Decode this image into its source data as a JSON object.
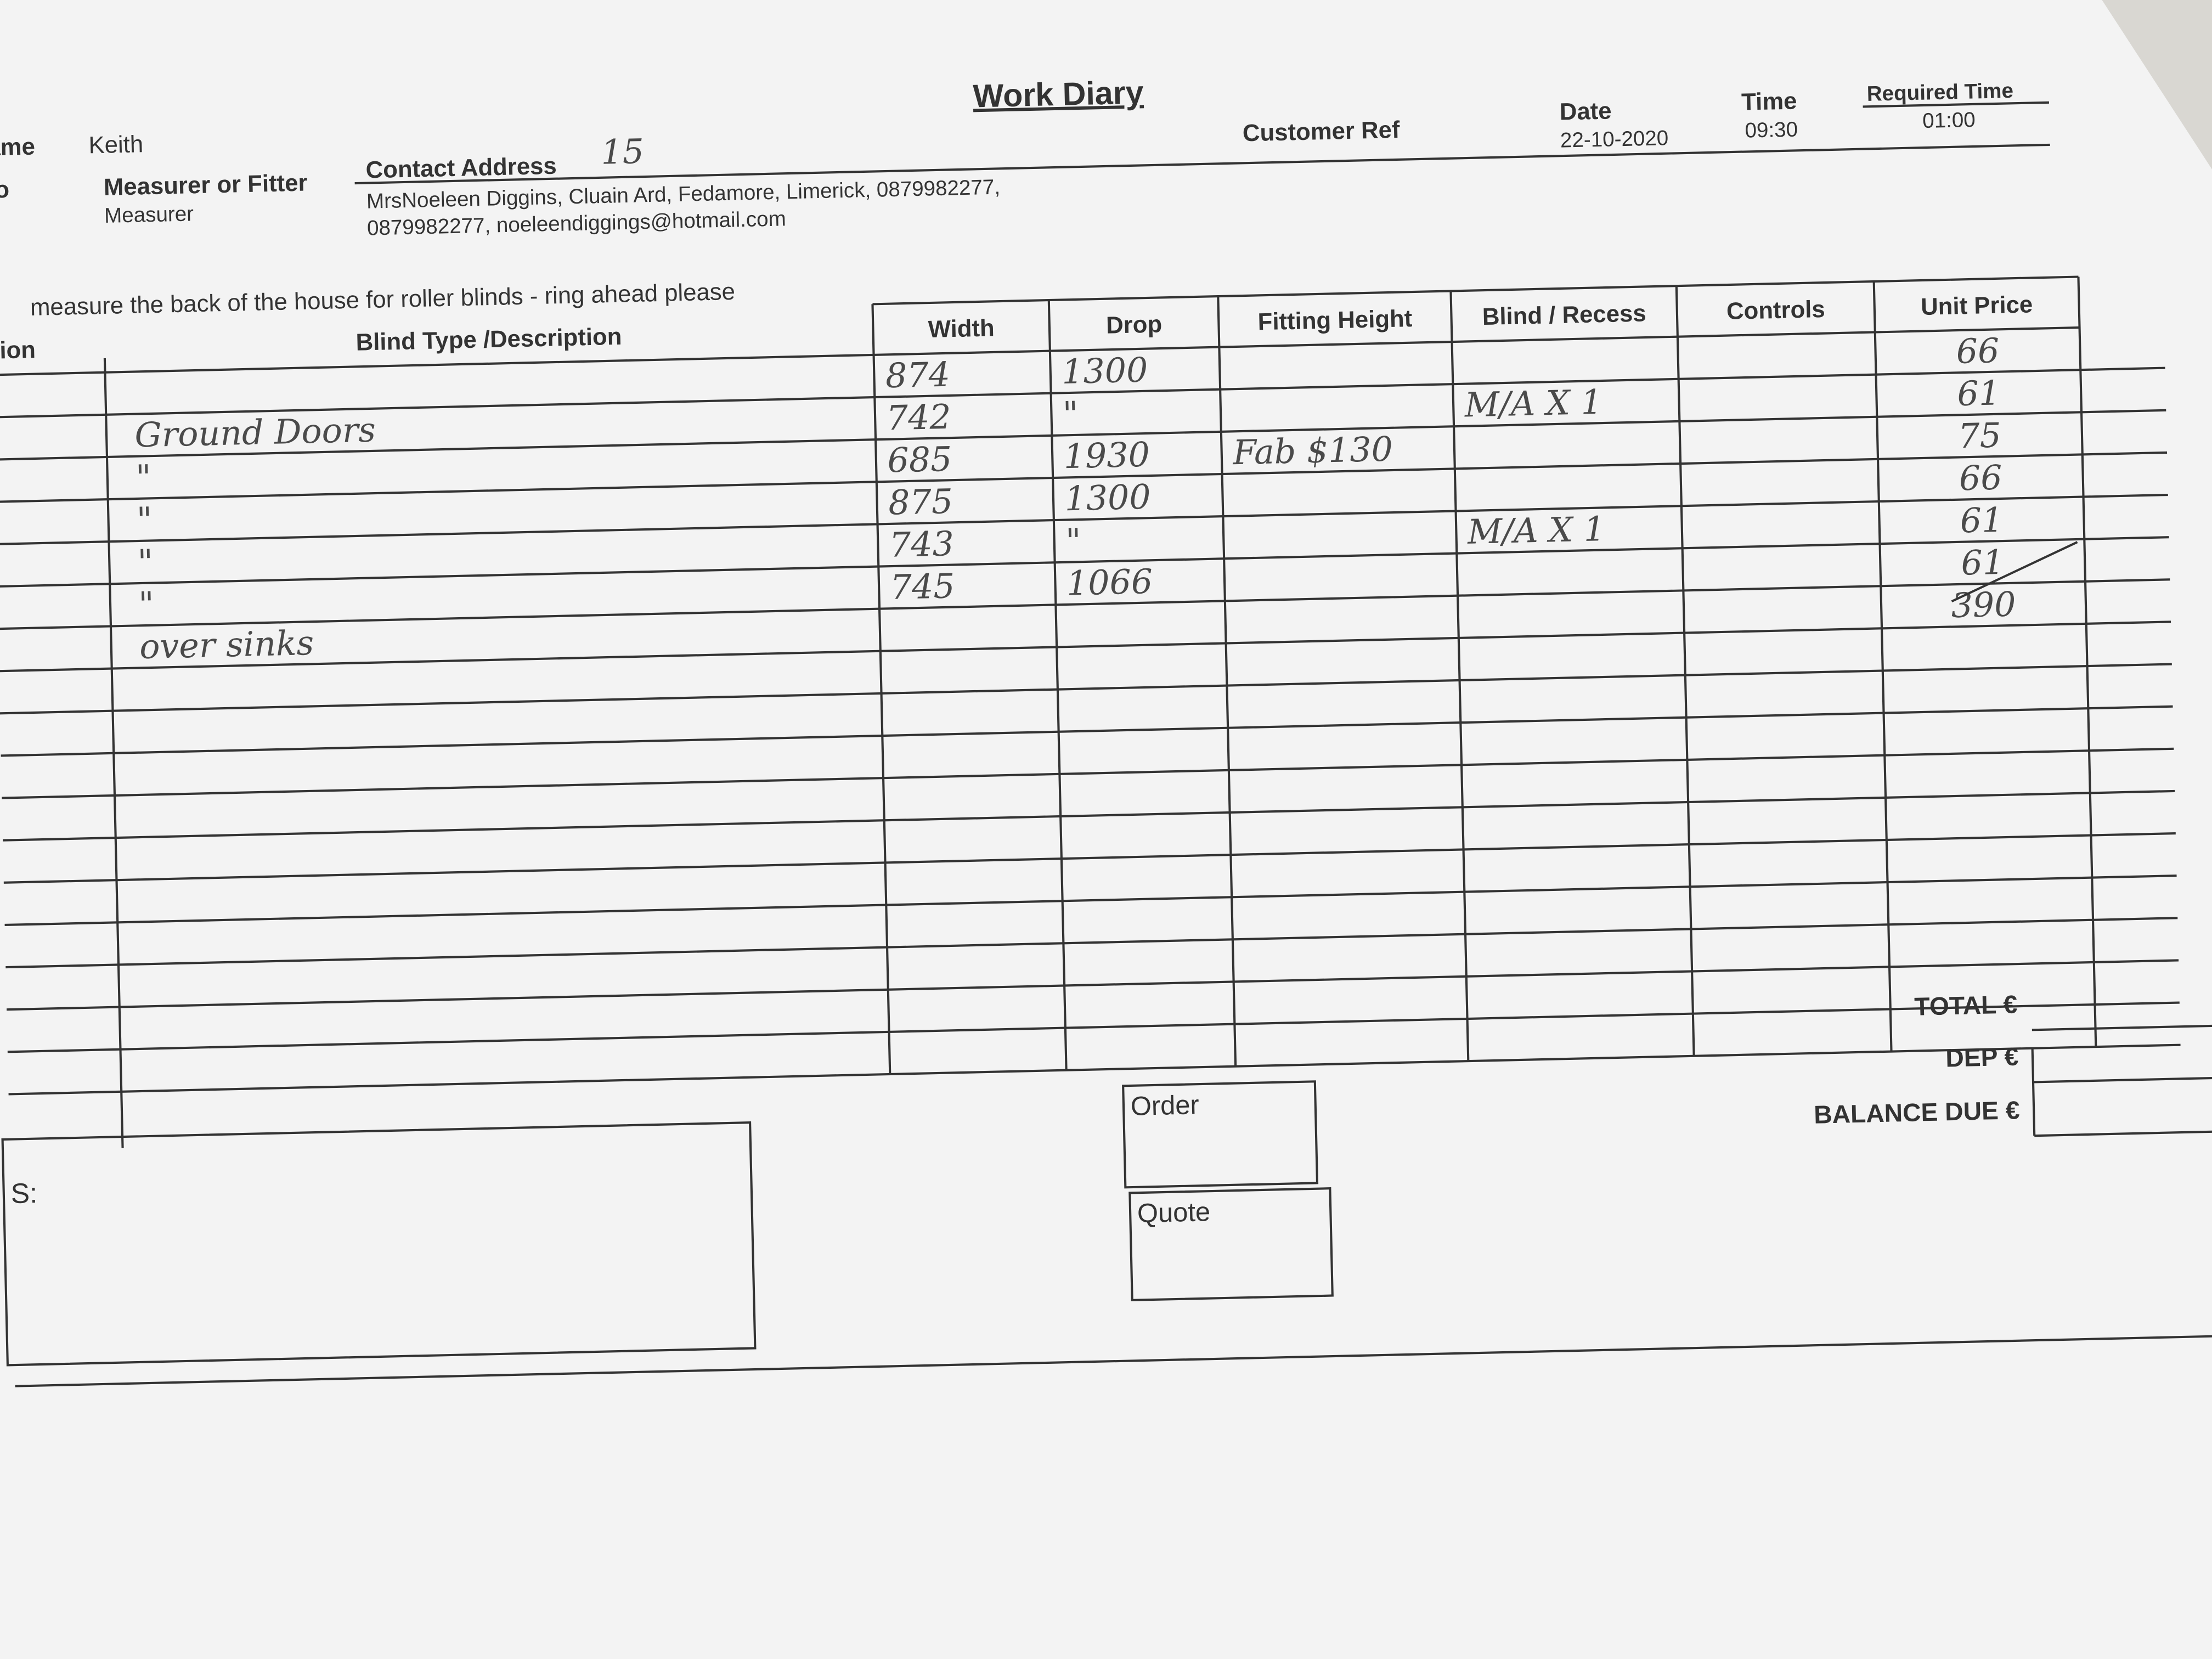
{
  "header": {
    "title": "Work Diary",
    "name_label": "ame",
    "name": "Keith",
    "no_label": "lo",
    "role_label": "Measurer or Fitter",
    "role": "Measurer",
    "address_label": "Contact Address",
    "address_note": "15",
    "address_lines": [
      "MrsNoeleen Diggins, Cluain Ard, Fedamore, Limerick, 0879982277,",
      "0879982277, noeleendiggings@hotmail.com"
    ],
    "customer_ref_label": "Customer Ref",
    "date_label": "Date",
    "date": "22-10-2020",
    "time_label": "Time",
    "time": "09:30",
    "required_time_label": "Required Time",
    "required_time": "01:00"
  },
  "notes": "measure the back of the house for roller blinds - ring ahead please",
  "table": {
    "columns": [
      "tion",
      "Blind Type /Description",
      "Width",
      "Drop",
      "Fitting Height",
      "Blind / Recess",
      "Controls",
      "Unit Price"
    ],
    "rows": [
      [
        "",
        "",
        "874",
        "1300",
        "",
        "",
        "",
        "66"
      ],
      [
        "",
        "Ground Doors",
        "742",
        "\"",
        "",
        "M/A X 1",
        "",
        "61"
      ],
      [
        "",
        "\"",
        "685",
        "1930",
        "Fab $130",
        "",
        "",
        "75"
      ],
      [
        "",
        "\"",
        "875",
        "1300",
        "",
        "",
        "",
        "66"
      ],
      [
        "",
        "\"",
        "743",
        "\"",
        "",
        "M/A X 1",
        "",
        "61"
      ],
      [
        "",
        "\"",
        "745",
        "1066",
        "",
        "",
        "",
        "61"
      ],
      [
        "",
        "over sinks",
        "",
        "",
        "",
        "",
        "",
        "390"
      ]
    ]
  },
  "footer": {
    "total_label": "TOTAL €",
    "deposit_label": "DEP €",
    "balance_label": "BALANCE DUE €",
    "notes_label": "S:",
    "order_label": "Order",
    "quote_label": "Quote"
  }
}
